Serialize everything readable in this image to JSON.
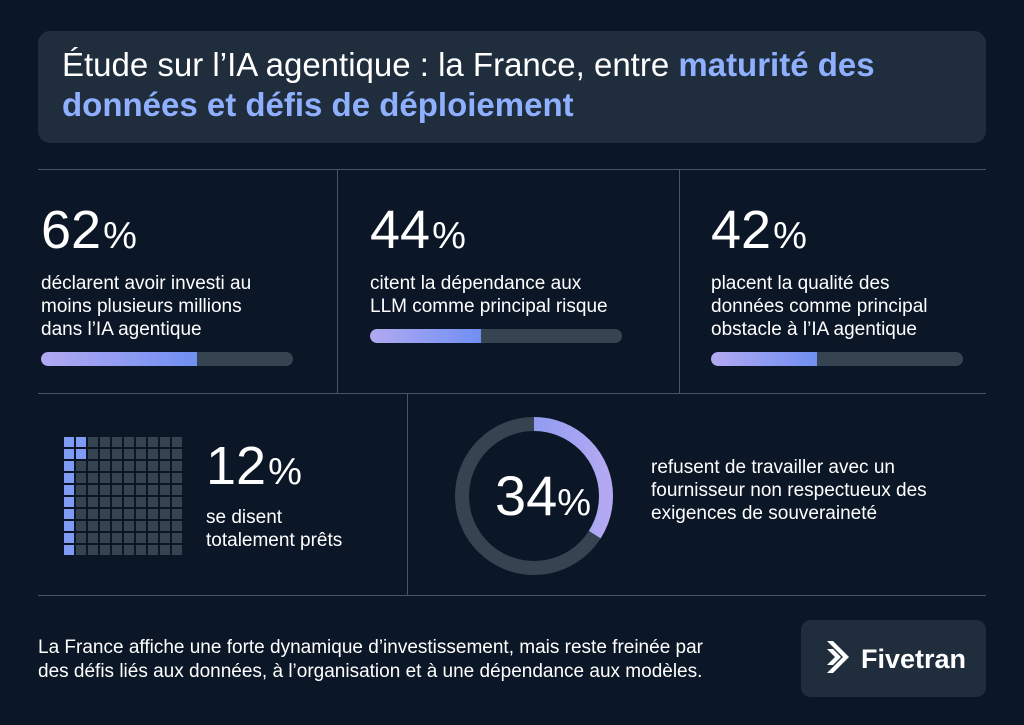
{
  "title": {
    "plain": "Étude sur l’IA agentique : la France, entre ",
    "highlight": "maturité des données et défis de déploiement",
    "highlight_color": "#8fb0ff"
  },
  "stats": [
    {
      "value": "62",
      "unit": "%",
      "text_lines": [
        "déclarent avoir investi au",
        "moins plusieurs millions",
        "dans l’IA agentique"
      ],
      "bar_fraction": 0.62
    },
    {
      "value": "44",
      "unit": "%",
      "text_lines": [
        "citent la dépendance aux",
        "LLM comme principal risque"
      ],
      "bar_fraction": 0.44
    },
    {
      "value": "42",
      "unit": "%",
      "text_lines": [
        "placent la qualité des",
        "données comme principal",
        "obstacle à l’IA agentique"
      ],
      "bar_fraction": 0.42
    }
  ],
  "ready": {
    "value": "12",
    "unit": "%",
    "text_lines": [
      "se disent",
      "totalement prêts"
    ],
    "grid_fraction": 0.12
  },
  "sovereignty": {
    "value": "34",
    "unit": "%",
    "text_lines": [
      "refusent de travailler avec un",
      "fournisseur non respectueux des",
      "exigences de souveraineté"
    ],
    "ring_fraction": 0.34
  },
  "footer": {
    "text_lines": [
      "La France affiche une forte dynamique d’investissement, mais reste freinée par",
      "des défis liés aux données, à l’organisation et à une dépendance aux modèles."
    ]
  },
  "brand": {
    "name": "Fivetran",
    "icon": "fivetran-logo-icon"
  },
  "colors": {
    "background": "#0b1626",
    "panel": "#1f2d3d",
    "accent": "#7f9cf5",
    "track": "#364350"
  }
}
